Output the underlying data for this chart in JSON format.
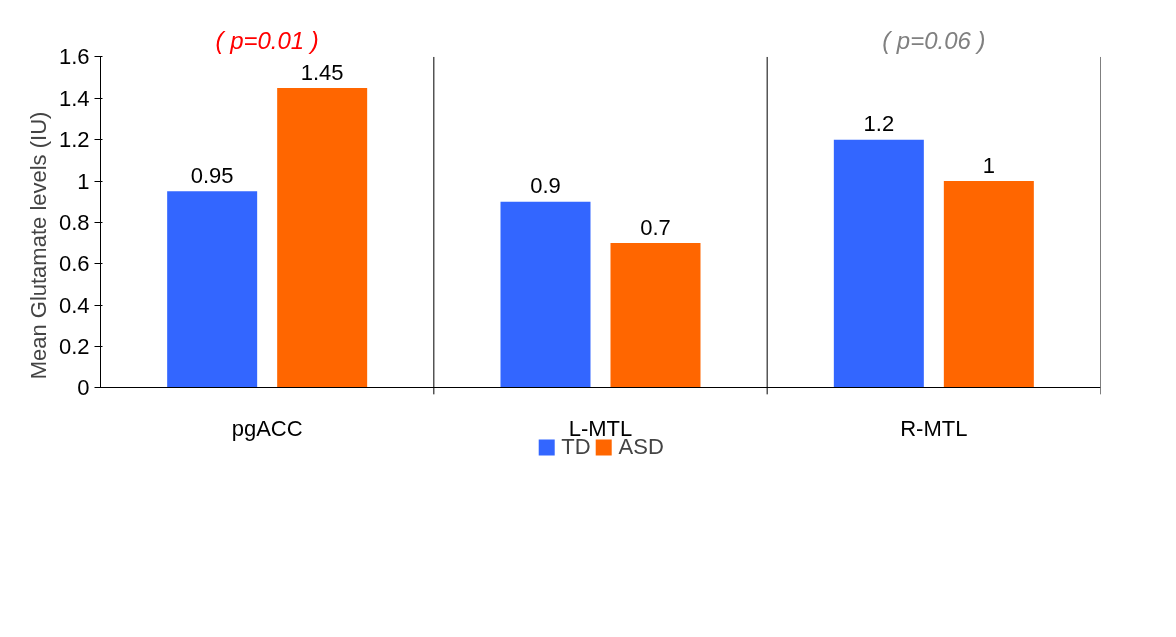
{
  "chart_data": {
    "type": "bar",
    "ylabel": "Mean Glutamate levels (IU)",
    "categories": [
      "pgACC",
      "L-MTL",
      "R-MTL"
    ],
    "series": [
      {
        "name": "TD",
        "color": "#3366ff",
        "values": [
          0.95,
          0.9,
          1.2
        ]
      },
      {
        "name": "ASD",
        "color": "#ff6600",
        "values": [
          1.45,
          0.7,
          1
        ]
      }
    ],
    "ylim": [
      0,
      1.6
    ],
    "yticks": [
      0,
      0.2,
      0.4,
      0.6,
      0.8,
      1,
      1.2,
      1.4,
      1.6
    ],
    "data_labels": true,
    "legend": "bottom",
    "grid": false,
    "annotations": [
      "( p=0.01 )",
      "( p=0.06 )"
    ]
  }
}
